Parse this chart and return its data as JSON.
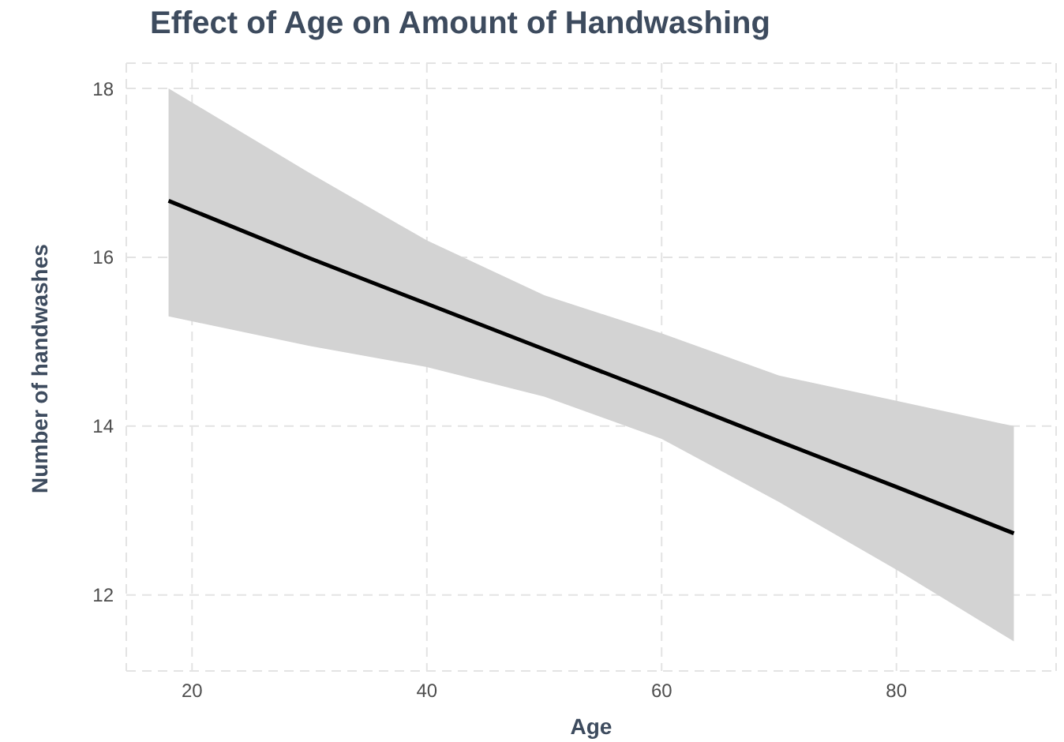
{
  "chart_data": {
    "type": "line",
    "title": "Effect of Age on Amount of Handwashing",
    "xlabel": "Age",
    "ylabel": "Number of handwashes",
    "x": [
      18,
      30,
      40,
      50,
      60,
      70,
      80,
      90
    ],
    "series": [
      {
        "color": "#000000",
        "values": [
          16.67,
          15.99,
          15.45,
          14.91,
          14.37,
          13.82,
          13.28,
          12.73
        ],
        "lower": [
          15.3,
          14.95,
          14.7,
          14.35,
          13.85,
          13.1,
          12.3,
          11.45
        ],
        "upper": [
          18.0,
          17.0,
          16.2,
          15.55,
          15.1,
          14.6,
          14.3,
          14.0
        ]
      }
    ],
    "xlim": [
      14.4,
      93.6
    ],
    "xticks": [
      20,
      40,
      60,
      80
    ],
    "ylim": [
      11.1,
      18.3
    ],
    "yticks": [
      12,
      14,
      16,
      18
    ],
    "grid": true,
    "line_style": "solid",
    "marker": "none"
  }
}
